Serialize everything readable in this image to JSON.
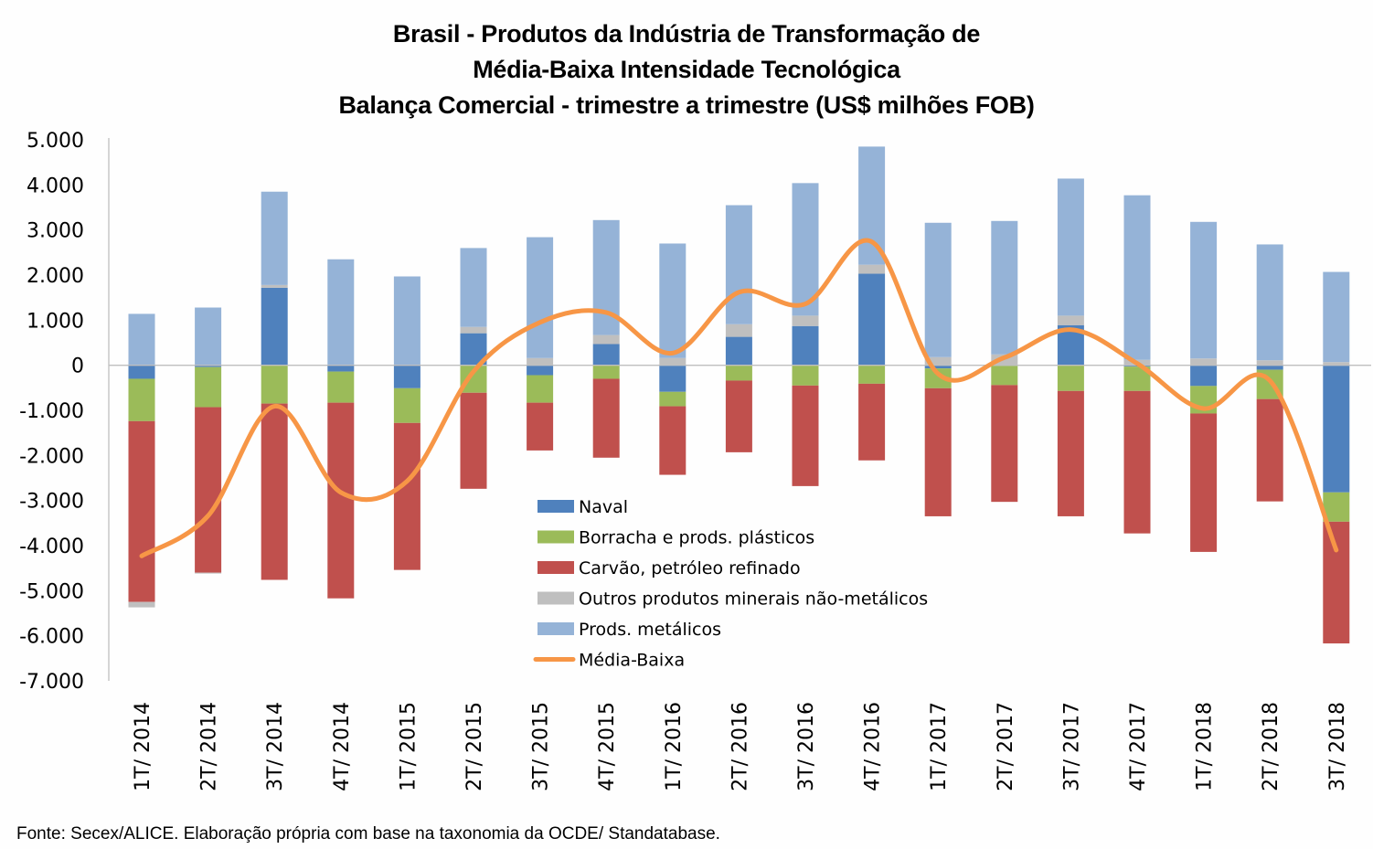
{
  "chart_data": {
    "type": "bar",
    "stacked": true,
    "title_lines": [
      "Brasil - Produtos da Indústria de Transformação de",
      "Média-Baixa Intensidade Tecnológica",
      "Balança Comercial - trimestre a trimestre (US$ milhões FOB)"
    ],
    "xlabel": "",
    "ylabel": "",
    "ylim": [
      -7000,
      5000
    ],
    "yticks": [
      5000,
      4000,
      3000,
      2000,
      1000,
      0,
      -1000,
      -2000,
      -3000,
      -4000,
      -5000,
      -6000,
      -7000
    ],
    "ytick_labels": [
      "5.000",
      "4.000",
      "3.000",
      "2.000",
      "1.000",
      "0",
      "-1.000",
      "-2.000",
      "-3.000",
      "-4.000",
      "-5.000",
      "-6.000",
      "-7.000"
    ],
    "grid": false,
    "legend_position": "center-bottom",
    "categories": [
      "1T/ 2014",
      "2T/ 2014",
      "3T/ 2014",
      "4T/ 2014",
      "1T/ 2015",
      "2T/ 2015",
      "3T/ 2015",
      "4T/ 2015",
      "1T/ 2016",
      "2T/ 2016",
      "3T/ 2016",
      "4T/ 2016",
      "1T/ 2017",
      "2T/ 2017",
      "3T/ 2017",
      "4T/ 2017",
      "1T/ 2018",
      "2T/ 2018",
      "3T/ 2018"
    ],
    "series": [
      {
        "name": "Naval",
        "kind": "bar",
        "color": "#4f81bd",
        "values": [
          -300,
          -40,
          1720,
          -140,
          -510,
          710,
          -220,
          470,
          -590,
          630,
          870,
          2030,
          -70,
          -10,
          890,
          -30,
          -460,
          -100,
          -2820
        ]
      },
      {
        "name": "Borracha e prods. plásticos",
        "kind": "bar",
        "color": "#9bbb59",
        "values": [
          -940,
          -890,
          -850,
          -690,
          -770,
          -610,
          -610,
          -300,
          -320,
          -340,
          -450,
          -410,
          -440,
          -430,
          -570,
          -540,
          -610,
          -650,
          -650
        ]
      },
      {
        "name": "Carvão, petróleo refinado",
        "kind": "bar",
        "color": "#c0504d",
        "values": [
          -4010,
          -3670,
          -3910,
          -4340,
          -3260,
          -2130,
          -1060,
          -1750,
          -1520,
          -1590,
          -2230,
          -1700,
          -2840,
          -2590,
          -2780,
          -3160,
          -3070,
          -2270,
          -2700
        ]
      },
      {
        "name": "Outros produtos minerais não-metálicos",
        "kind": "bar",
        "color": "#bfbfbf",
        "values": [
          -120,
          -20,
          60,
          0,
          0,
          140,
          160,
          200,
          160,
          280,
          230,
          200,
          180,
          240,
          210,
          120,
          150,
          110,
          70
        ]
      },
      {
        "name": "Prods. metálicos",
        "kind": "bar",
        "color": "#95b3d7",
        "values": [
          1140,
          1280,
          2070,
          2350,
          1970,
          1750,
          2680,
          2550,
          2540,
          2640,
          2940,
          2620,
          2980,
          2960,
          3040,
          3650,
          3030,
          2570,
          2000
        ]
      },
      {
        "name": "Média-Baixa",
        "kind": "line",
        "color": "#f79646",
        "values": [
          -4230,
          -3340,
          -910,
          -2820,
          -2570,
          -140,
          950,
          1170,
          270,
          1620,
          1360,
          2740,
          -190,
          170,
          790,
          40,
          -960,
          -340,
          -4100
        ]
      }
    ]
  },
  "source_note": "Fonte: Secex/ALICE. Elaboração própria com base na taxonomia da OCDE/ Standatabase."
}
